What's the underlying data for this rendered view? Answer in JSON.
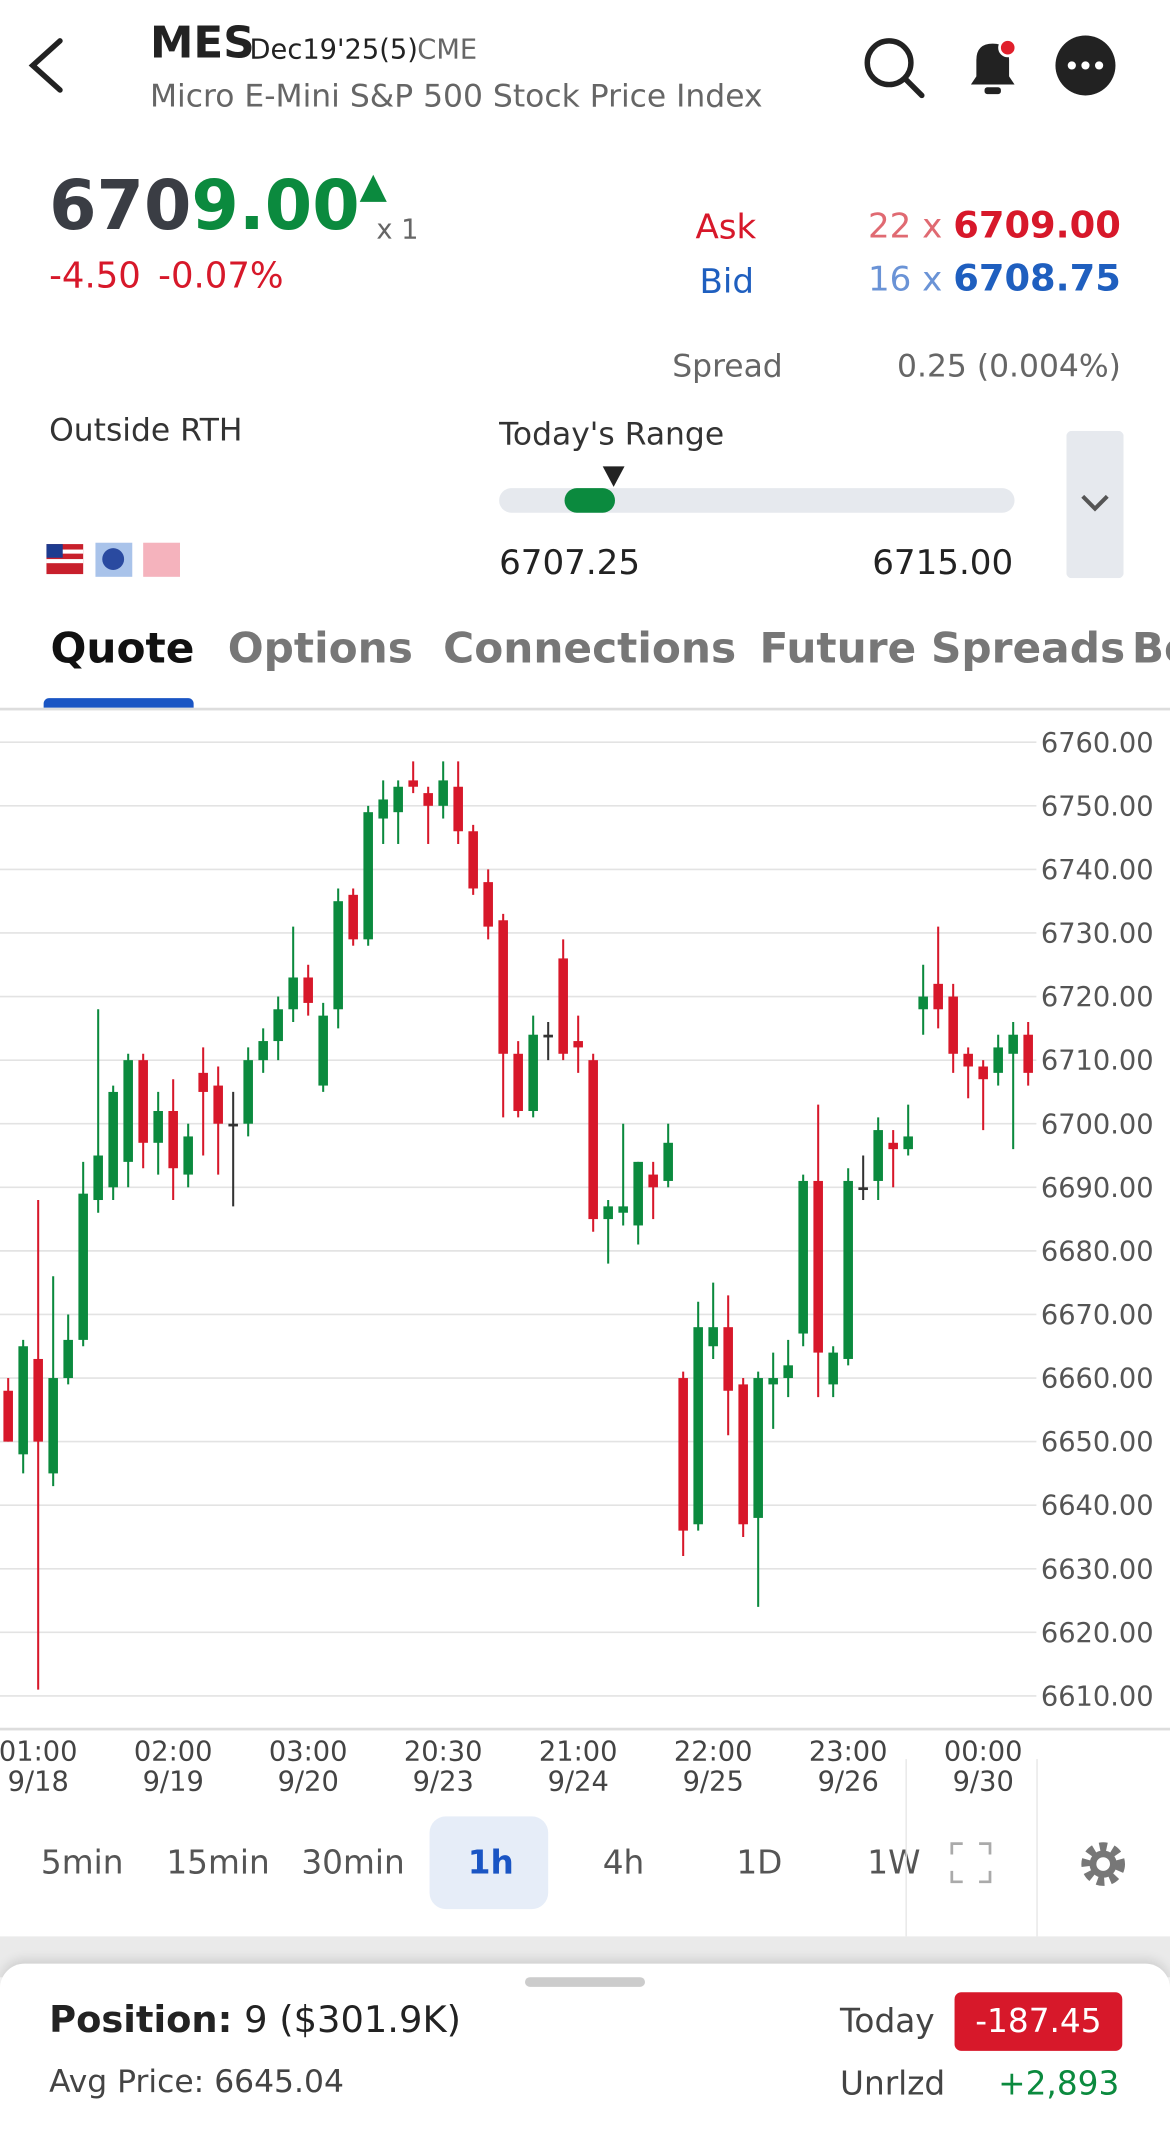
{
  "header": {
    "symbol": "MES",
    "contract": "Dec19'25(5)",
    "exchange": "CME",
    "name": "Micro E-Mini S&P 500 Stock Price Index"
  },
  "quote": {
    "price_parts": [
      "670",
      "9.00"
    ],
    "quantity": "x 1",
    "change": "-4.50",
    "change_pct": "-0.07%",
    "ask": {
      "label": "Ask",
      "size": "22",
      "x": "x",
      "price": "6709.00"
    },
    "bid": {
      "label": "Bid",
      "size": "16",
      "x": "x",
      "price": "6708.75"
    },
    "spread": {
      "label": "Spread",
      "value": "0.25 (0.004%)"
    },
    "session": "Outside RTH",
    "range": {
      "label": "Today's Range",
      "low": "6707.25",
      "high": "6715.00"
    }
  },
  "tabs": [
    "Quote",
    "Options",
    "Connections",
    "Future Spreads",
    "Be"
  ],
  "chart_data": {
    "type": "candlestick",
    "categories": [
      null,
      null,
      [
        "01:00",
        "9/18"
      ],
      null,
      null,
      null,
      null,
      null,
      null,
      null,
      null,
      [
        "02:00",
        "9/19"
      ],
      null,
      null,
      null,
      null,
      null,
      null,
      null,
      null,
      [
        "03:00",
        "9/20"
      ],
      null,
      null,
      null,
      null,
      null,
      null,
      null,
      null,
      [
        "20:30",
        "9/23"
      ],
      null,
      null,
      null,
      null,
      null,
      null,
      null,
      null,
      [
        "21:00",
        "9/24"
      ],
      null,
      null,
      null,
      null,
      null,
      null,
      null,
      null,
      [
        "22:00",
        "9/25"
      ],
      null,
      null,
      null,
      null,
      null,
      null,
      null,
      null,
      [
        "23:00",
        "9/26"
      ],
      null,
      null,
      null,
      null,
      null,
      null,
      null,
      null,
      [
        "00:00",
        "9/30"
      ],
      null,
      null,
      null
    ],
    "series": [
      {
        "open": [
          6658,
          6648,
          6663,
          6645,
          6660,
          6666,
          6688,
          6690,
          6694,
          6710,
          6697,
          6702,
          6692,
          6708,
          6706,
          6700,
          6700,
          6710,
          6713,
          6718,
          6723,
          6706,
          6718,
          6736,
          6729,
          6748,
          6749,
          6754,
          6752,
          6750,
          6753,
          6746,
          6738,
          6732,
          6711,
          6702,
          6714,
          6726,
          6713,
          6710,
          6685,
          6686,
          6684,
          6692,
          6691,
          6660,
          6637,
          6665,
          6668,
          6659,
          6638,
          6659,
          6660,
          6667,
          6691,
          6659,
          6663,
          6690,
          6691,
          6697,
          6696,
          6718,
          6722,
          6720,
          6711,
          6709,
          6708,
          6711,
          6714
        ],
        "high": [
          6660,
          6666,
          6688,
          6676,
          6670,
          6694,
          6718,
          6706,
          6711,
          6711,
          6705,
          6707,
          6700,
          6712,
          6709,
          6705,
          6712,
          6715,
          6720,
          6731,
          6725,
          6719,
          6737,
          6737,
          6750,
          6754,
          6754,
          6757,
          6753,
          6757,
          6757,
          6747,
          6740,
          6733,
          6713,
          6717,
          6716,
          6729,
          6717,
          6711,
          6688,
          6700,
          6694,
          6694,
          6700,
          6661,
          6672,
          6675,
          6673,
          6660,
          6661,
          6664,
          6666,
          6692,
          6703,
          6665,
          6693,
          6695,
          6701,
          6699,
          6703,
          6725,
          6731,
          6722,
          6712,
          6710,
          6714,
          6716,
          6716
        ],
        "low": [
          6650,
          6645,
          6611,
          6643,
          6659,
          6665,
          6686,
          6688,
          6690,
          6693,
          6692,
          6688,
          6690,
          6695,
          6692,
          6687,
          6698,
          6708,
          6710,
          6716,
          6717,
          6705,
          6715,
          6728,
          6728,
          6744,
          6744,
          6752,
          6744,
          6748,
          6744,
          6736,
          6729,
          6701,
          6701,
          6701,
          6710,
          6710,
          6708,
          6683,
          6678,
          6684,
          6681,
          6685,
          6690,
          6632,
          6636,
          6663,
          6651,
          6635,
          6624,
          6652,
          6657,
          6665,
          6657,
          6657,
          6662,
          6688,
          6688,
          6690,
          6695,
          6714,
          6715,
          6708,
          6704,
          6699,
          6706,
          6696,
          6706
        ],
        "close": [
          6650,
          6665,
          6650,
          6660,
          6666,
          6689,
          6695,
          6705,
          6710,
          6697,
          6702,
          6693,
          6698,
          6705,
          6700,
          6700,
          6710,
          6713,
          6718,
          6723,
          6719,
          6717,
          6735,
          6729,
          6749,
          6751,
          6753,
          6753,
          6750,
          6754,
          6746,
          6737,
          6731,
          6711,
          6702,
          6714,
          6714,
          6711,
          6712,
          6685,
          6687,
          6687,
          6694,
          6690,
          6697,
          6636,
          6668,
          6668,
          6658,
          6637,
          6660,
          6660,
          6662,
          6691,
          6664,
          6664,
          6691,
          6690,
          6699,
          6696,
          6698,
          6720,
          6718,
          6711,
          6709,
          6707,
          6712,
          6714,
          6708
        ]
      }
    ],
    "ylim": [
      6605,
      6765
    ],
    "yticks": [
      {
        "value": 6760,
        "label": "6760.00"
      },
      {
        "value": 6750,
        "label": "6750.00"
      },
      {
        "value": 6740,
        "label": "6740.00"
      },
      {
        "value": 6730,
        "label": "6730.00"
      },
      {
        "value": 6720,
        "label": "6720.00"
      },
      {
        "value": 6710,
        "label": "6710.00"
      },
      {
        "value": 6700,
        "label": "6700.00"
      },
      {
        "value": 6690,
        "label": "6690.00"
      },
      {
        "value": 6680,
        "label": "6680.00"
      },
      {
        "value": 6670,
        "label": "6670.00"
      },
      {
        "value": 6660,
        "label": "6660.00"
      },
      {
        "value": 6650,
        "label": "6650.00"
      },
      {
        "value": 6640,
        "label": "6640.00"
      },
      {
        "value": 6630,
        "label": "6630.00"
      },
      {
        "value": 6620,
        "label": "6620.00"
      },
      {
        "value": 6610,
        "label": "6610.00"
      }
    ],
    "grid": true,
    "up_color": "#0b8a3e",
    "down_color": "#d7182a",
    "flat_color": "#333333"
  },
  "intervals": [
    "5min",
    "15min",
    "30min",
    "1h",
    "4h",
    "1D",
    "1W"
  ],
  "selected_interval": "1h",
  "position": {
    "label": "Position:",
    "quantity": "9",
    "value": "($301.9K)",
    "avg_label": "Avg Price:",
    "avg_price": "6645.04",
    "today_label": "Today",
    "today_pnl": "-187.45",
    "unrealized_label": "Unrlzd",
    "unrealized_pnl": "+2,893"
  }
}
